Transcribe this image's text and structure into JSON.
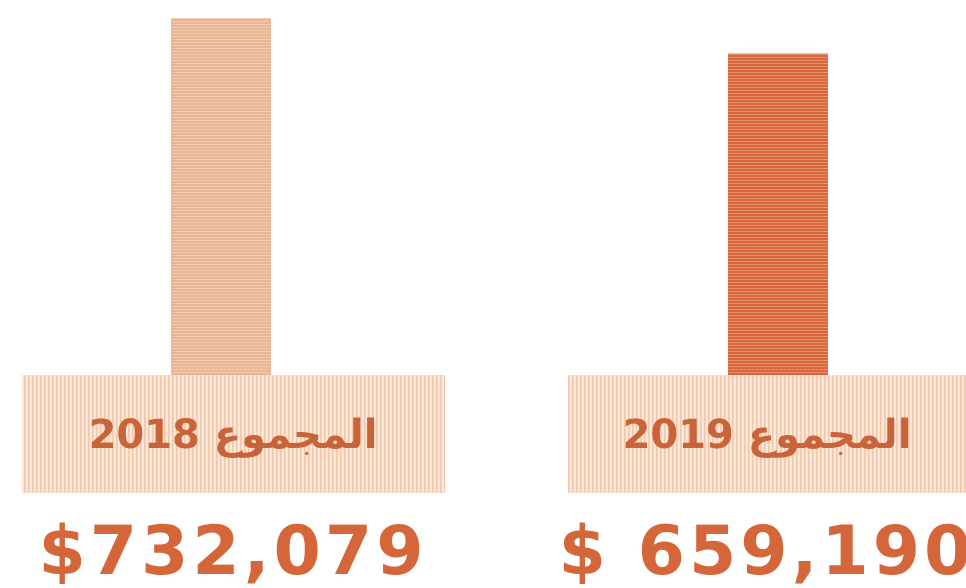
{
  "chart_data": {
    "type": "bar",
    "categories": [
      "المجموع 2018",
      "المجموع 2019"
    ],
    "values": [
      732079,
      659190
    ],
    "value_labels": [
      "$732,079",
      "$ 659,190"
    ],
    "colors": [
      "#eab592",
      "#d9663a"
    ]
  }
}
